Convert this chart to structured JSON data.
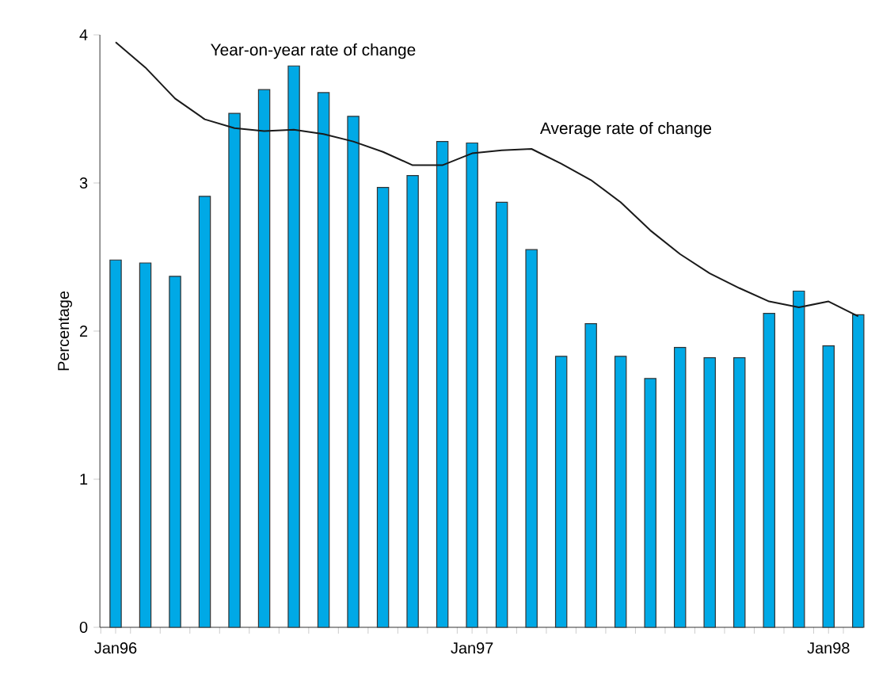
{
  "chart_data": {
    "type": "bar",
    "ylabel": "Percentage",
    "categories": [
      "Jan96",
      null,
      null,
      null,
      null,
      null,
      null,
      null,
      null,
      null,
      null,
      null,
      "Jan97",
      null,
      null,
      null,
      null,
      null,
      null,
      null,
      null,
      null,
      null,
      null,
      "Jan98",
      null
    ],
    "series": [
      {
        "name": "Year-on-year rate of change",
        "color": "#00a9e6",
        "values": [
          2.48,
          2.46,
          2.37,
          2.91,
          3.47,
          3.63,
          3.79,
          3.61,
          3.45,
          2.97,
          3.05,
          3.28,
          3.27,
          2.87,
          2.55,
          1.83,
          2.05,
          1.83,
          1.68,
          1.89,
          1.82,
          1.82,
          2.12,
          2.27,
          1.9,
          2.11
        ]
      },
      {
        "name": "Average rate of change",
        "type": "line",
        "color": "#1a1a1a",
        "values": [
          3.95,
          3.78,
          3.57,
          3.43,
          3.37,
          3.35,
          3.36,
          3.33,
          3.28,
          3.21,
          3.12,
          3.12,
          3.2,
          3.22,
          3.23,
          3.13,
          3.02,
          2.87,
          2.68,
          2.52,
          2.39,
          2.29,
          2.2,
          2.16,
          2.2,
          2.1
        ]
      }
    ],
    "ylim": [
      0,
      4
    ],
    "yticks": [
      0,
      1,
      2,
      3,
      4
    ],
    "grid": false,
    "legend": false,
    "marker": "none",
    "line_style": "solid"
  }
}
